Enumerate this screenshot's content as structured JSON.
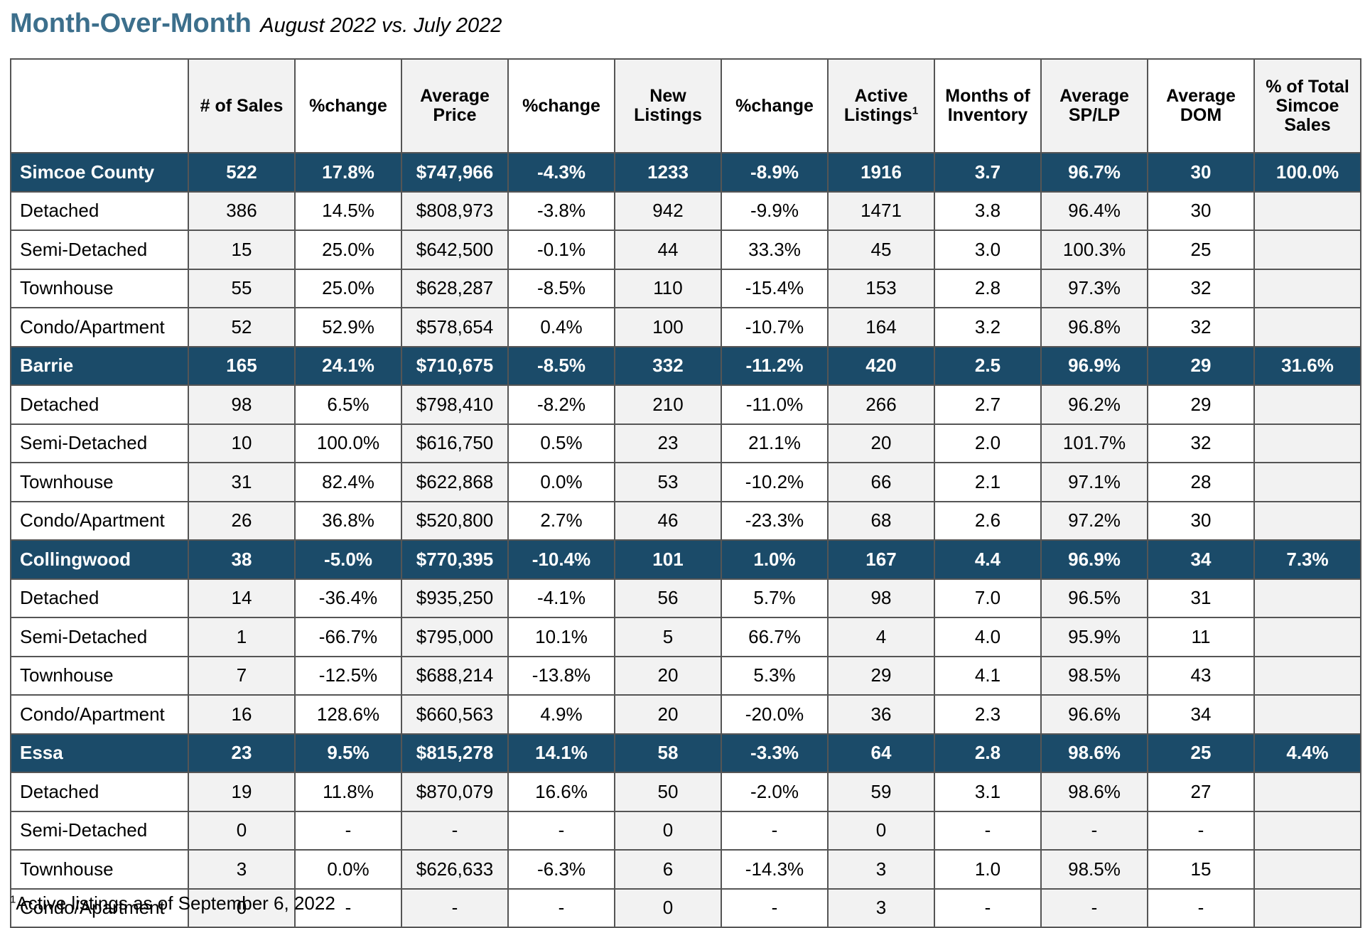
{
  "title": {
    "main": "Month-Over-Month",
    "subtitle": "August 2022 vs. July 2022"
  },
  "headers": [
    "",
    "# of Sales",
    "%change",
    "Average Price",
    "%change",
    "New Listings",
    "%change",
    "Active Listings",
    "Months of Inventory",
    "Average SP/LP",
    "Average DOM",
    "% of Total Simcoe Sales"
  ],
  "active_listings_footnote_marker": "1",
  "rows": [
    {
      "type": "region",
      "cells": [
        "Simcoe County",
        "522",
        "17.8%",
        "$747,966",
        "-4.3%",
        "1233",
        "-8.9%",
        "1916",
        "3.7",
        "96.7%",
        "30",
        "100.0%"
      ]
    },
    {
      "type": "sub",
      "cells": [
        "Detached",
        "386",
        "14.5%",
        "$808,973",
        "-3.8%",
        "942",
        "-9.9%",
        "1471",
        "3.8",
        "96.4%",
        "30",
        ""
      ]
    },
    {
      "type": "sub",
      "cells": [
        "Semi-Detached",
        "15",
        "25.0%",
        "$642,500",
        "-0.1%",
        "44",
        "33.3%",
        "45",
        "3.0",
        "100.3%",
        "25",
        ""
      ]
    },
    {
      "type": "sub",
      "cells": [
        "Townhouse",
        "55",
        "25.0%",
        "$628,287",
        "-8.5%",
        "110",
        "-15.4%",
        "153",
        "2.8",
        "97.3%",
        "32",
        ""
      ]
    },
    {
      "type": "sub",
      "cells": [
        "Condo/Apartment",
        "52",
        "52.9%",
        "$578,654",
        "0.4%",
        "100",
        "-10.7%",
        "164",
        "3.2",
        "96.8%",
        "32",
        ""
      ]
    },
    {
      "type": "region",
      "cells": [
        "Barrie",
        "165",
        "24.1%",
        "$710,675",
        "-8.5%",
        "332",
        "-11.2%",
        "420",
        "2.5",
        "96.9%",
        "29",
        "31.6%"
      ]
    },
    {
      "type": "sub",
      "cells": [
        "Detached",
        "98",
        "6.5%",
        "$798,410",
        "-8.2%",
        "210",
        "-11.0%",
        "266",
        "2.7",
        "96.2%",
        "29",
        ""
      ]
    },
    {
      "type": "sub",
      "cells": [
        "Semi-Detached",
        "10",
        "100.0%",
        "$616,750",
        "0.5%",
        "23",
        "21.1%",
        "20",
        "2.0",
        "101.7%",
        "32",
        ""
      ]
    },
    {
      "type": "sub",
      "cells": [
        "Townhouse",
        "31",
        "82.4%",
        "$622,868",
        "0.0%",
        "53",
        "-10.2%",
        "66",
        "2.1",
        "97.1%",
        "28",
        ""
      ]
    },
    {
      "type": "sub",
      "cells": [
        "Condo/Apartment",
        "26",
        "36.8%",
        "$520,800",
        "2.7%",
        "46",
        "-23.3%",
        "68",
        "2.6",
        "97.2%",
        "30",
        ""
      ]
    },
    {
      "type": "region",
      "cells": [
        "Collingwood",
        "38",
        "-5.0%",
        "$770,395",
        "-10.4%",
        "101",
        "1.0%",
        "167",
        "4.4",
        "96.9%",
        "34",
        "7.3%"
      ]
    },
    {
      "type": "sub",
      "cells": [
        "Detached",
        "14",
        "-36.4%",
        "$935,250",
        "-4.1%",
        "56",
        "5.7%",
        "98",
        "7.0",
        "96.5%",
        "31",
        ""
      ]
    },
    {
      "type": "sub",
      "cells": [
        "Semi-Detached",
        "1",
        "-66.7%",
        "$795,000",
        "10.1%",
        "5",
        "66.7%",
        "4",
        "4.0",
        "95.9%",
        "11",
        ""
      ]
    },
    {
      "type": "sub",
      "cells": [
        "Townhouse",
        "7",
        "-12.5%",
        "$688,214",
        "-13.8%",
        "20",
        "5.3%",
        "29",
        "4.1",
        "98.5%",
        "43",
        ""
      ]
    },
    {
      "type": "sub",
      "cells": [
        "Condo/Apartment",
        "16",
        "128.6%",
        "$660,563",
        "4.9%",
        "20",
        "-20.0%",
        "36",
        "2.3",
        "96.6%",
        "34",
        ""
      ]
    },
    {
      "type": "region",
      "cells": [
        "Essa",
        "23",
        "9.5%",
        "$815,278",
        "14.1%",
        "58",
        "-3.3%",
        "64",
        "2.8",
        "98.6%",
        "25",
        "4.4%"
      ]
    },
    {
      "type": "sub",
      "cells": [
        "Detached",
        "19",
        "11.8%",
        "$870,079",
        "16.6%",
        "50",
        "-2.0%",
        "59",
        "3.1",
        "98.6%",
        "27",
        ""
      ]
    },
    {
      "type": "sub",
      "cells": [
        "Semi-Detached",
        "0",
        "-",
        "-",
        "-",
        "0",
        "-",
        "0",
        "-",
        "-",
        "-",
        ""
      ]
    },
    {
      "type": "sub",
      "cells": [
        "Townhouse",
        "3",
        "0.0%",
        "$626,633",
        "-6.3%",
        "6",
        "-14.3%",
        "3",
        "1.0",
        "98.5%",
        "15",
        ""
      ]
    },
    {
      "type": "sub",
      "cells": [
        "Condo/Apartment",
        "0",
        "-",
        "-",
        "-",
        "0",
        "-",
        "3",
        "-",
        "-",
        "-",
        ""
      ]
    }
  ],
  "footnote": {
    "marker": "1",
    "text": "Active listings as of September 6, 2022"
  },
  "colors": {
    "title": "#3c6f8c",
    "region_row_bg": "#1b4b69",
    "region_row_text": "#ffffff",
    "alt_column_bg": "#f2f2f2",
    "border": "#555555"
  }
}
